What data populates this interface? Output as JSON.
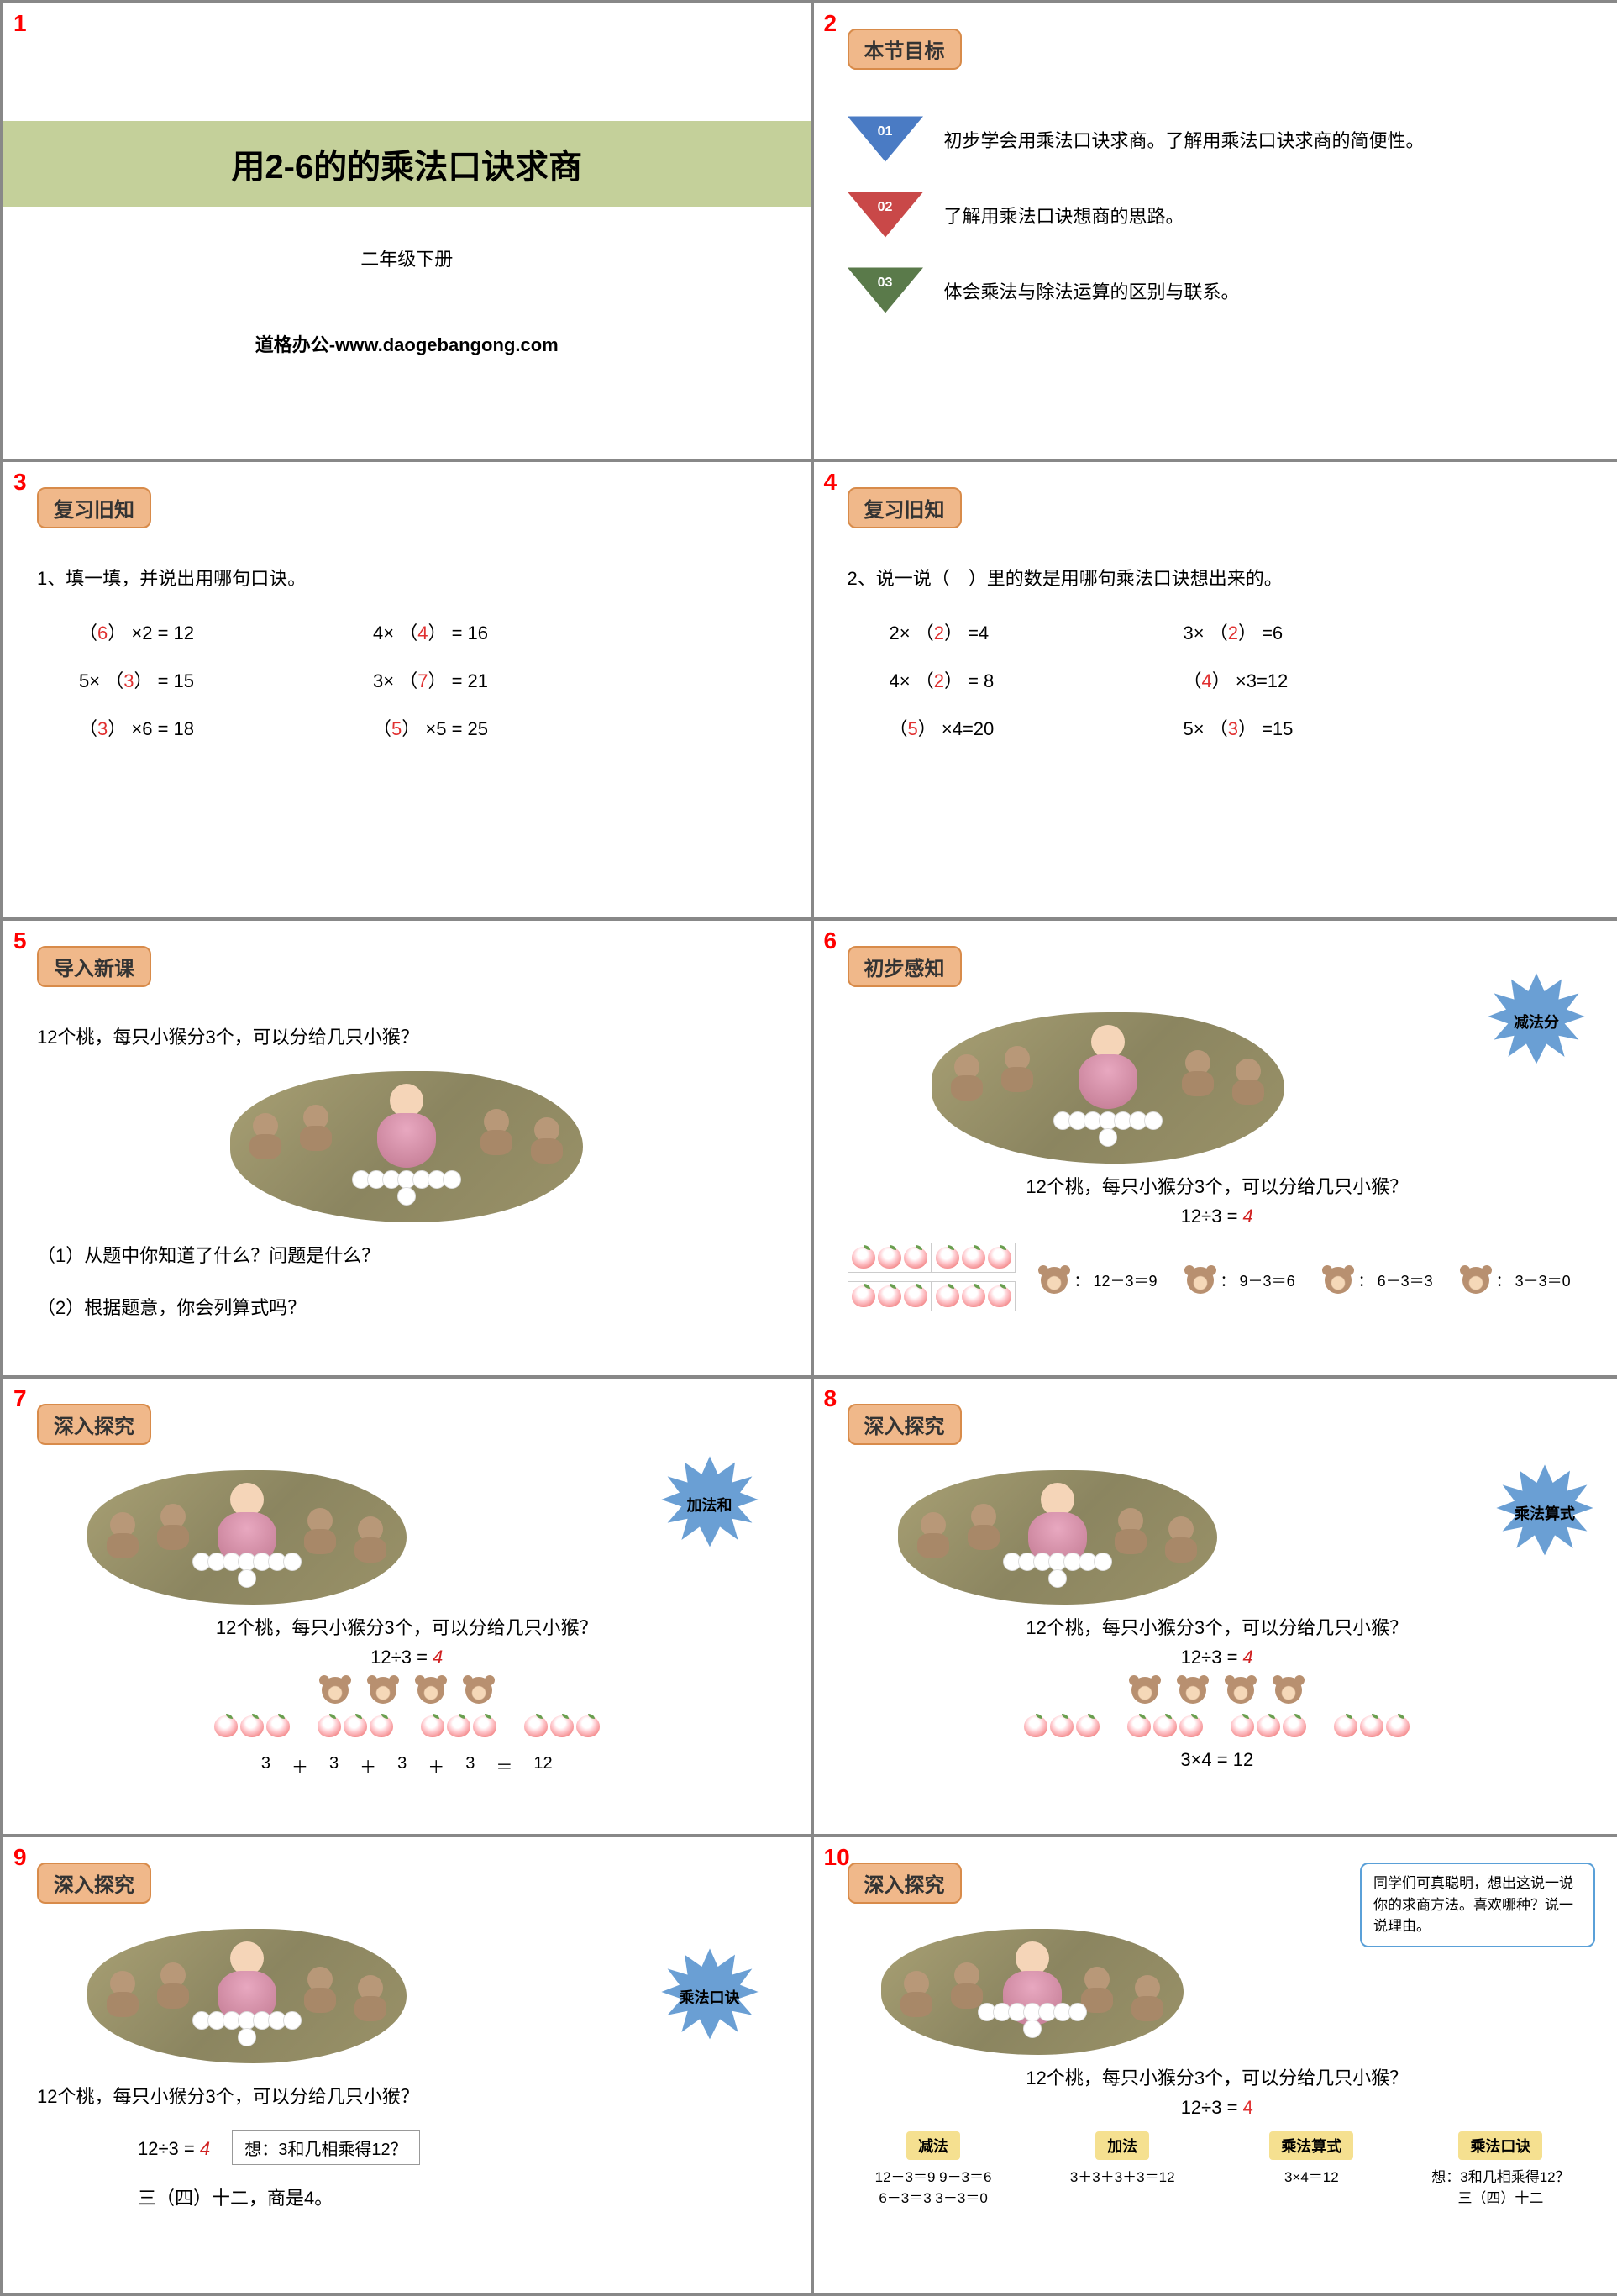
{
  "slide1": {
    "num": "1",
    "title": "用2-6的的乘法口诀求商",
    "subtitle": "二年级下册",
    "footer": "道格办公-www.daogebangong.com",
    "title_bg": "#c4d09a"
  },
  "slide2": {
    "num": "2",
    "badge": "本节目标",
    "objectives": [
      {
        "num": "01",
        "text": "初步学会用乘法口诀求商。了解用乘法口诀求商的简便性。",
        "color": "#4a7bc4",
        "line": "#4a7bc4"
      },
      {
        "num": "02",
        "text": "了解用乘法口诀想商的思路。",
        "color": "#c94848",
        "line": "#c94848"
      },
      {
        "num": "03",
        "text": "体会乘法与除法运算的区别与联系。",
        "color": "#5a7a4a",
        "line": "#5a7a4a"
      }
    ]
  },
  "slide3": {
    "num": "3",
    "badge": "复习旧知",
    "intro": "1、填一填，并说出用哪句口诀。",
    "rows": [
      [
        {
          "pre": "（",
          "ans": "6",
          "post": "） ×2 = 12"
        },
        {
          "pre": "4× （",
          "ans": "4",
          "post": "） = 16"
        }
      ],
      [
        {
          "pre": "5× （",
          "ans": "3",
          "post": "） = 15"
        },
        {
          "pre": "3× （",
          "ans": "7",
          "post": "） = 21"
        }
      ],
      [
        {
          "pre": "（",
          "ans": "3",
          "post": "） ×6 = 18"
        },
        {
          "pre": "（",
          "ans": "5",
          "post": "） ×5 = 25"
        }
      ]
    ]
  },
  "slide4": {
    "num": "4",
    "badge": "复习旧知",
    "intro": "2、说一说（　）里的数是用哪句乘法口诀想出来的。",
    "rows": [
      [
        {
          "pre": "2× （",
          "ans": "2",
          "post": "） =4"
        },
        {
          "pre": "3× （",
          "ans": "2",
          "post": "） =6"
        }
      ],
      [
        {
          "pre": "4× （",
          "ans": "2",
          "post": "） = 8"
        },
        {
          "pre": "（",
          "ans": "4",
          "post": "） ×3=12"
        }
      ],
      [
        {
          "pre": "（",
          "ans": "5",
          "post": "） ×4=20"
        },
        {
          "pre": "5× （",
          "ans": "3",
          "post": "） =15"
        }
      ]
    ]
  },
  "slide5": {
    "num": "5",
    "badge": "导入新课",
    "question": "12个桃，每只小猴分3个，可以分给几只小猴？",
    "q1": "（1）从题中你知道了什么？问题是什么？",
    "q2": "（2）根据题意，你会列算式吗？"
  },
  "slide6": {
    "num": "6",
    "badge": "初步感知",
    "burst": "减法分",
    "burst_color": "#6a9fd4",
    "question": "12个桃，每只小猴分3个，可以分给几只小猴？",
    "eq": "12÷3 = ",
    "eq_ans": "4",
    "calcs": [
      {
        "label": "：",
        "expr": "12－3＝9"
      },
      {
        "label": "：",
        "expr": "9－3＝6"
      },
      {
        "label": "：",
        "expr": "6－3＝3"
      },
      {
        "label": "：",
        "expr": "3－3＝0"
      }
    ]
  },
  "slide7": {
    "num": "7",
    "badge": "深入探究",
    "burst": "加法和",
    "burst_color": "#6a9fd4",
    "question": "12个桃，每只小猴分3个，可以分给几只小猴？",
    "eq": "12÷3 = ",
    "eq_ans": "4",
    "sum": {
      "parts": [
        "3",
        "3",
        "3",
        "3"
      ],
      "ops": [
        "＋",
        "＋",
        "＋",
        "＝"
      ],
      "result": "12"
    }
  },
  "slide8": {
    "num": "8",
    "badge": "深入探究",
    "burst": "乘法算式",
    "burst_color": "#6a9fd4",
    "question": "12个桃，每只小猴分3个，可以分给几只小猴？",
    "eq": "12÷3 = ",
    "eq_ans": "4",
    "mult": "3×4 = 12"
  },
  "slide9": {
    "num": "9",
    "badge": "深入探究",
    "burst": "乘法口诀",
    "burst_color": "#6a9fd4",
    "question": "12个桃，每只小猴分3个，可以分给几只小猴？",
    "eq": "12÷3 = ",
    "eq_ans": "4",
    "think": "想：3和几相乘得12？",
    "result": "三（四）十二，商是4。"
  },
  "slide10": {
    "num": "10",
    "badge": "深入探究",
    "speech": "同学们可真聪明，想出这说一说你的求商方法。喜欢哪种？说一说理由。",
    "question": "12个桃，每只小猴分3个，可以分给几只小猴？",
    "eq": "12÷3 = ",
    "eq_ans": "4",
    "methods": [
      {
        "label": "减法",
        "lines": [
          "12－3＝9  9－3＝6",
          "6－3＝3  3－3＝0"
        ]
      },
      {
        "label": "加法",
        "lines": [
          "3＋3＋3＋3＝12"
        ]
      },
      {
        "label": "乘法算式",
        "lines": [
          "3×4＝12"
        ]
      },
      {
        "label": "乘法口诀",
        "lines": [
          "想：3和几相乘得12？",
          "三（四）十二"
        ]
      }
    ]
  }
}
